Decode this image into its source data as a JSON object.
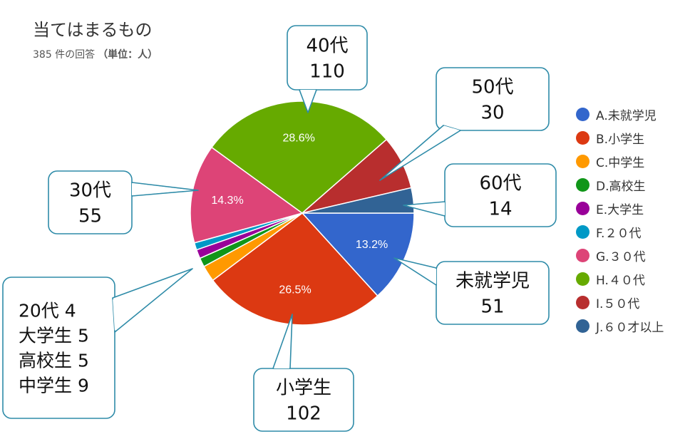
{
  "header": {
    "title": "当てはまるもの",
    "count": "385 件の回答",
    "unit": "（単位：人）"
  },
  "chart_data": {
    "type": "pie",
    "categories": [
      "A.未就学児",
      "B.小学生",
      "C.中学生",
      "D.高校生",
      "E.大学生",
      "F.２０代",
      "G.３０代",
      "H.４０代",
      "I.５０代",
      "J.６０才以上"
    ],
    "values": [
      51,
      102,
      9,
      5,
      5,
      4,
      55,
      110,
      30,
      14
    ],
    "percent_labels": [
      "13.2%",
      "26.5%",
      "",
      "",
      "",
      "",
      "14.3%",
      "28.6%",
      "",
      ""
    ],
    "colors": [
      "#3366cc",
      "#dc3912",
      "#ff9900",
      "#109618",
      "#990099",
      "#0099c6",
      "#dd4477",
      "#66aa00",
      "#b82e2e",
      "#316395"
    ],
    "legend_position": "right",
    "callouts": [
      {
        "lines": [
          "40代",
          "110"
        ]
      },
      {
        "lines": [
          "50代",
          "30"
        ]
      },
      {
        "lines": [
          "60代",
          "14"
        ]
      },
      {
        "lines": [
          "30代",
          "55"
        ]
      },
      {
        "lines": [
          "未就学児",
          "51"
        ]
      },
      {
        "lines": [
          "20代 4",
          "大学生 5",
          "高校生 5",
          "中学生 9"
        ]
      },
      {
        "lines": [
          "小学生",
          "102"
        ]
      }
    ]
  }
}
